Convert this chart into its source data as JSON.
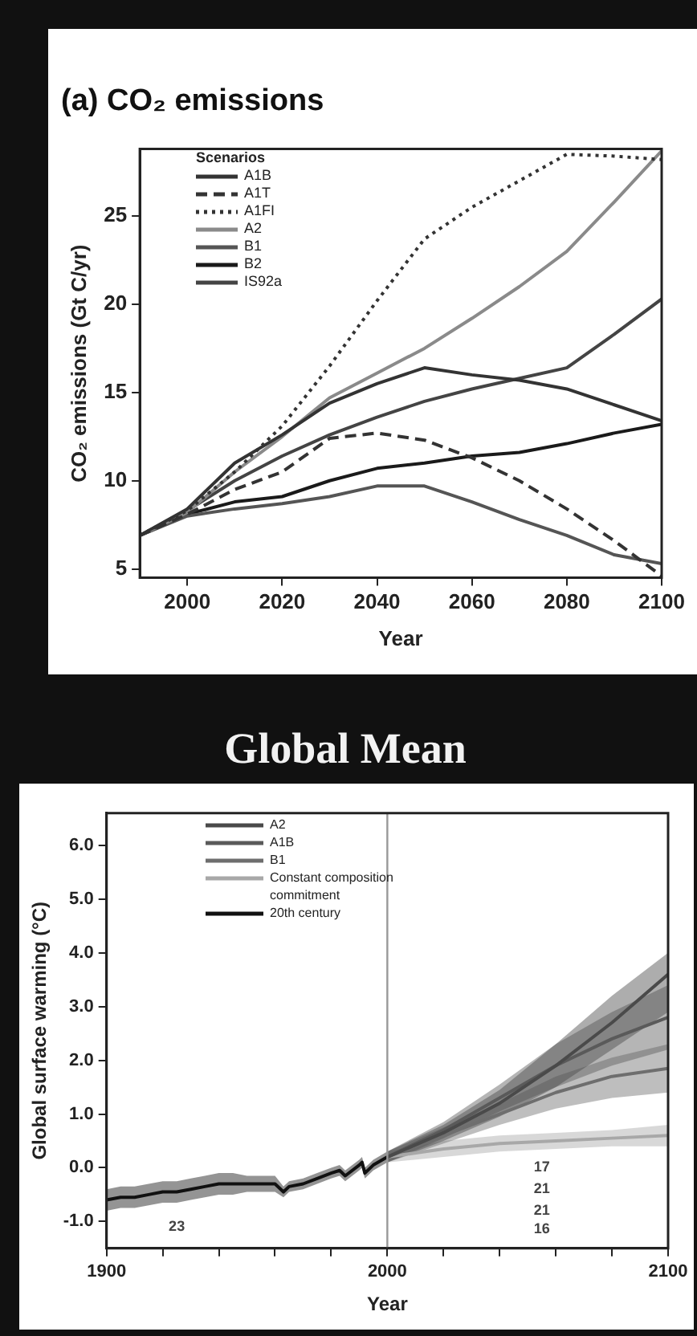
{
  "chart_data": [
    {
      "type": "line",
      "title": "(a) CO₂ emissions",
      "xlabel": "Year",
      "ylabel": "CO₂ emissions (Gt C/yr)",
      "legend_title": "Scenarios",
      "legend": "top left",
      "x": [
        1990,
        2000,
        2010,
        2020,
        2030,
        2040,
        2050,
        2060,
        2070,
        2080,
        2090,
        2100
      ],
      "xlim": [
        1990,
        2100
      ],
      "ylim": [
        4.5,
        28.8
      ],
      "xticks": [
        2000,
        2020,
        2040,
        2060,
        2080,
        2100
      ],
      "yticks": [
        5,
        10,
        15,
        20,
        25
      ],
      "series": [
        {
          "name": "A1B",
          "color": "#333333",
          "line_style": "solid",
          "values": [
            6.9,
            8.4,
            11.0,
            12.6,
            14.4,
            15.5,
            16.4,
            16.0,
            15.7,
            15.2,
            14.3,
            13.4
          ]
        },
        {
          "name": "A1T",
          "color": "#333333",
          "line_style": "dashed",
          "values": [
            6.9,
            8.1,
            9.5,
            10.5,
            12.4,
            12.7,
            12.3,
            11.3,
            10.0,
            8.4,
            6.6,
            4.6
          ]
        },
        {
          "name": "A1FI",
          "color": "#333333",
          "line_style": "dotted",
          "values": [
            6.9,
            8.3,
            10.5,
            13.1,
            16.5,
            20.2,
            23.7,
            25.5,
            27.0,
            28.5,
            28.4,
            28.2
          ]
        },
        {
          "name": "A2",
          "color": "#8a8a8a",
          "line_style": "solid",
          "values": [
            6.9,
            8.2,
            10.5,
            12.5,
            14.7,
            16.1,
            17.5,
            19.2,
            21.0,
            23.0,
            25.8,
            28.7
          ]
        },
        {
          "name": "B1",
          "color": "#555555",
          "line_style": "solid",
          "values": [
            6.9,
            8.0,
            8.4,
            8.7,
            9.1,
            9.7,
            9.7,
            8.8,
            7.8,
            6.9,
            5.8,
            5.3
          ]
        },
        {
          "name": "B2",
          "color": "#1a1a1a",
          "line_style": "solid",
          "values": [
            6.9,
            8.1,
            8.8,
            9.1,
            10.0,
            10.7,
            11.0,
            11.4,
            11.6,
            12.1,
            12.7,
            13.2
          ]
        },
        {
          "name": "IS92a",
          "color": "#444444",
          "line_style": "solid",
          "values": [
            6.9,
            8.3,
            10.0,
            11.4,
            12.6,
            13.6,
            14.5,
            15.2,
            15.8,
            16.4,
            18.3,
            20.3
          ]
        }
      ]
    },
    {
      "type": "line",
      "title": "Global Mean",
      "xlabel": "Year",
      "ylabel": "Global surface warming (°C)",
      "legend": "top left",
      "xlim": [
        1900,
        2100
      ],
      "ylim": [
        -1.5,
        6.6
      ],
      "xticks": [
        1900,
        {
          "value": 1920,
          "label": null
        },
        {
          "value": 1940,
          "label": null
        },
        {
          "value": 1960,
          "label": null
        },
        {
          "value": 1980,
          "label": null
        },
        2000,
        {
          "value": 2020,
          "label": null
        },
        {
          "value": 2040,
          "label": null
        },
        {
          "value": 2060,
          "label": null
        },
        {
          "value": 2080,
          "label": null
        },
        2100
      ],
      "yticks": [
        {
          "value": -1,
          "label": "-1.0"
        },
        {
          "value": 0,
          "label": "0.0"
        },
        {
          "value": 1,
          "label": "1.0"
        },
        {
          "value": 2,
          "label": "2.0"
        },
        {
          "value": 3,
          "label": "3.0"
        },
        {
          "value": 4,
          "label": "4.0"
        },
        {
          "value": 5,
          "label": "5.0"
        },
        {
          "value": 6,
          "label": "6.0"
        }
      ],
      "ref_lines": [
        {
          "axis": "x",
          "value": 2000,
          "color": "#999999"
        }
      ],
      "series": [
        {
          "name": "A2",
          "color": "#4a4a4a",
          "x": [
            2000,
            2020,
            2040,
            2060,
            2080,
            2100
          ],
          "values": [
            0.2,
            0.65,
            1.2,
            1.9,
            2.7,
            3.6
          ],
          "lower": [
            0.1,
            0.5,
            0.95,
            1.5,
            2.2,
            2.9
          ],
          "upper": [
            0.3,
            0.8,
            1.45,
            2.3,
            3.2,
            4.0
          ]
        },
        {
          "name": "A1B",
          "color": "#5a5a5a",
          "x": [
            2000,
            2020,
            2040,
            2060,
            2080,
            2100
          ],
          "values": [
            0.2,
            0.7,
            1.3,
            1.9,
            2.4,
            2.8
          ],
          "lower": [
            0.1,
            0.55,
            1.05,
            1.5,
            1.9,
            2.2
          ],
          "upper": [
            0.3,
            0.85,
            1.55,
            2.3,
            2.9,
            3.4
          ]
        },
        {
          "name": "B1",
          "color": "#6e6e6e",
          "x": [
            2000,
            2020,
            2040,
            2060,
            2080,
            2100
          ],
          "values": [
            0.2,
            0.6,
            1.0,
            1.4,
            1.7,
            1.85
          ],
          "lower": [
            0.1,
            0.45,
            0.8,
            1.1,
            1.3,
            1.4
          ],
          "upper": [
            0.3,
            0.75,
            1.2,
            1.7,
            2.05,
            2.3
          ]
        },
        {
          "name": "Constant composition commitment",
          "color": "#a8a8a8",
          "x": [
            2000,
            2020,
            2040,
            2060,
            2080,
            2100
          ],
          "values": [
            0.2,
            0.35,
            0.45,
            0.5,
            0.55,
            0.6
          ],
          "lower": [
            0.1,
            0.2,
            0.3,
            0.35,
            0.4,
            0.4
          ],
          "upper": [
            0.3,
            0.5,
            0.6,
            0.65,
            0.7,
            0.8
          ]
        },
        {
          "name": "20th century",
          "color": "#111111",
          "x": [
            1900,
            1905,
            1910,
            1915,
            1920,
            1925,
            1930,
            1935,
            1940,
            1945,
            1950,
            1955,
            1960,
            1963,
            1965,
            1970,
            1975,
            1980,
            1983,
            1985,
            1990,
            1991,
            1992,
            1995,
            2000
          ],
          "values": [
            -0.6,
            -0.55,
            -0.55,
            -0.5,
            -0.45,
            -0.45,
            -0.4,
            -0.35,
            -0.3,
            -0.3,
            -0.3,
            -0.3,
            -0.3,
            -0.45,
            -0.35,
            -0.3,
            -0.2,
            -0.1,
            -0.05,
            -0.15,
            0.05,
            0.1,
            -0.1,
            0.05,
            0.2
          ],
          "lower": [
            -0.8,
            -0.75,
            -0.75,
            -0.7,
            -0.65,
            -0.65,
            -0.6,
            -0.55,
            -0.5,
            -0.5,
            -0.45,
            -0.45,
            -0.45,
            -0.55,
            -0.45,
            -0.4,
            -0.3,
            -0.2,
            -0.15,
            -0.25,
            -0.05,
            0.0,
            -0.2,
            -0.05,
            0.1
          ],
          "upper": [
            -0.4,
            -0.35,
            -0.35,
            -0.3,
            -0.25,
            -0.25,
            -0.2,
            -0.15,
            -0.1,
            -0.1,
            -0.15,
            -0.15,
            -0.15,
            -0.35,
            -0.25,
            -0.2,
            -0.1,
            0.0,
            0.05,
            -0.05,
            0.15,
            0.2,
            0.0,
            0.15,
            0.3
          ]
        }
      ],
      "annotations": [
        "23",
        "17",
        "21",
        "21",
        "16"
      ]
    }
  ]
}
